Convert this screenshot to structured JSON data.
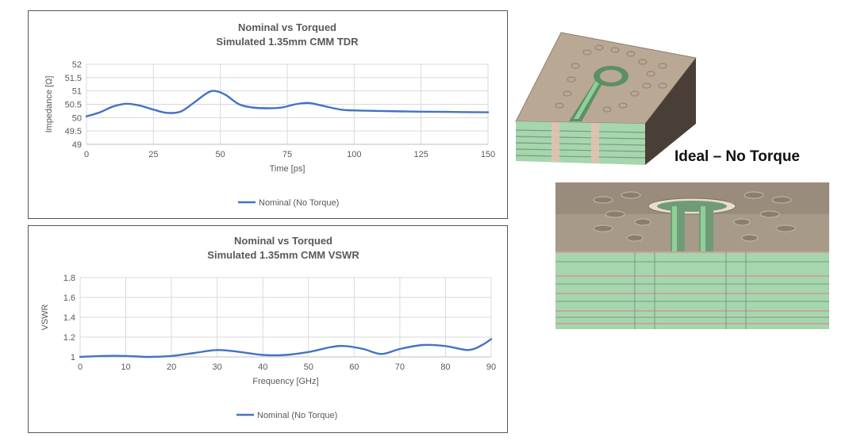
{
  "side_label": "Ideal – No Torque",
  "chart_data": [
    {
      "type": "line",
      "title": "Nominal vs Torqued",
      "subtitle": "Simulated 1.35mm CMM TDR",
      "xlabel": "Time [ps]",
      "ylabel": "Impedance [Ω]",
      "xlim": [
        0,
        150
      ],
      "ylim": [
        49,
        52
      ],
      "xticks": [
        0,
        25,
        50,
        75,
        100,
        125,
        150
      ],
      "yticks": [
        49,
        49.5,
        50,
        50.5,
        51,
        51.5,
        52
      ],
      "ytick_labels": [
        "49",
        "49.5",
        "50",
        "50.5",
        "51",
        "51.5",
        "52"
      ],
      "grid": true,
      "legend_position": "bottom",
      "series": [
        {
          "name": "Nominal (No Torque)",
          "color": "#4472c4",
          "x": [
            0,
            5,
            10,
            15,
            20,
            25,
            30,
            35,
            40,
            45,
            48,
            52,
            57,
            62,
            68,
            73,
            78,
            83,
            88,
            95,
            100,
            110,
            120,
            130,
            140,
            150
          ],
          "y": [
            50.05,
            50.2,
            50.42,
            50.52,
            50.45,
            50.3,
            50.18,
            50.22,
            50.55,
            50.92,
            51.0,
            50.85,
            50.5,
            50.38,
            50.35,
            50.38,
            50.5,
            50.55,
            50.45,
            50.3,
            50.27,
            50.25,
            50.23,
            50.22,
            50.21,
            50.2
          ]
        }
      ]
    },
    {
      "type": "line",
      "title": "Nominal vs Torqued",
      "subtitle": "Simulated 1.35mm CMM VSWR",
      "xlabel": "Frequency [GHz]",
      "ylabel": "VSWR",
      "xlim": [
        0,
        90
      ],
      "ylim": [
        1,
        1.8
      ],
      "xticks": [
        0,
        10,
        20,
        30,
        40,
        50,
        60,
        70,
        80,
        90
      ],
      "yticks": [
        1,
        1.2,
        1.4,
        1.6,
        1.8
      ],
      "ytick_labels": [
        "1",
        "1.2",
        "1.4",
        "1.6",
        "1.8"
      ],
      "grid": true,
      "legend_position": "bottom",
      "series": [
        {
          "name": "Nominal (No Torque)",
          "color": "#4472c4",
          "x": [
            0,
            5,
            10,
            15,
            20,
            25,
            30,
            35,
            40,
            45,
            50,
            55,
            58,
            62,
            66,
            70,
            75,
            80,
            85,
            88,
            90
          ],
          "y": [
            1.0,
            1.01,
            1.01,
            1.0,
            1.01,
            1.04,
            1.07,
            1.05,
            1.02,
            1.02,
            1.05,
            1.1,
            1.11,
            1.08,
            1.03,
            1.08,
            1.12,
            1.11,
            1.07,
            1.12,
            1.18
          ]
        }
      ]
    }
  ]
}
